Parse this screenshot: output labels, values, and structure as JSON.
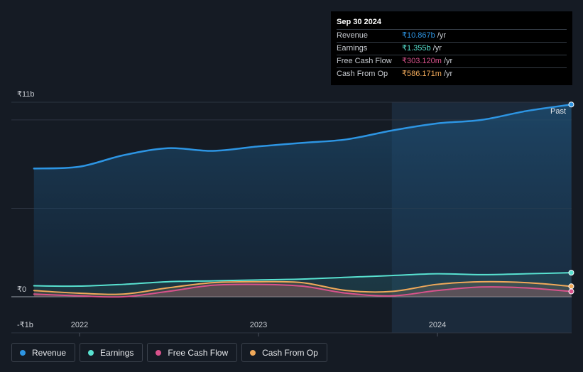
{
  "tooltip": {
    "date": "Sep 30 2024",
    "rows": [
      {
        "label": "Revenue",
        "value": "₹10.867b",
        "unit": "/yr",
        "color": "#2d95e3"
      },
      {
        "label": "Earnings",
        "value": "₹1.355b",
        "unit": "/yr",
        "color": "#58e1d0"
      },
      {
        "label": "Free Cash Flow",
        "value": "₹303.120m",
        "unit": "/yr",
        "color": "#d9528c"
      },
      {
        "label": "Cash From Op",
        "value": "₹586.171m",
        "unit": "/yr",
        "color": "#f0a95a"
      }
    ]
  },
  "past_label": "Past",
  "legend": [
    {
      "label": "Revenue",
      "color": "#2d95e3"
    },
    {
      "label": "Earnings",
      "color": "#58e1d0"
    },
    {
      "label": "Free Cash Flow",
      "color": "#d9528c"
    },
    {
      "label": "Cash From Op",
      "color": "#f0a95a"
    }
  ],
  "chart_data": {
    "type": "line",
    "y_tick_labels": [
      "₹11b",
      "₹0",
      "-₹1b"
    ],
    "x_tick_labels": [
      "2022",
      "2023",
      "2024"
    ],
    "ylim": [
      -1,
      11
    ],
    "unit": "₹b",
    "grid": true,
    "legend_position": "bottom",
    "highlighted_from": "2023-09-30",
    "x": [
      "2021-09-30",
      "2021-12-31",
      "2022-03-31",
      "2022-06-30",
      "2022-09-30",
      "2022-12-31",
      "2023-03-31",
      "2023-06-30",
      "2023-09-30",
      "2023-12-31",
      "2024-03-31",
      "2024-06-30",
      "2024-09-30"
    ],
    "series": [
      {
        "name": "Revenue",
        "color": "#2d95e3",
        "values": [
          7.25,
          7.35,
          8.0,
          8.4,
          8.25,
          8.5,
          8.7,
          8.9,
          9.4,
          9.8,
          10.0,
          10.5,
          10.87
        ]
      },
      {
        "name": "Earnings",
        "color": "#58e1d0",
        "values": [
          0.62,
          0.6,
          0.7,
          0.85,
          0.9,
          0.95,
          1.0,
          1.1,
          1.2,
          1.3,
          1.25,
          1.3,
          1.36
        ]
      },
      {
        "name": "Free Cash Flow",
        "color": "#d9528c",
        "values": [
          0.15,
          0.05,
          0.0,
          0.3,
          0.65,
          0.7,
          0.6,
          0.2,
          0.05,
          0.35,
          0.55,
          0.5,
          0.3
        ]
      },
      {
        "name": "Cash From Op",
        "color": "#f0a95a",
        "values": [
          0.35,
          0.2,
          0.15,
          0.5,
          0.8,
          0.85,
          0.8,
          0.35,
          0.3,
          0.7,
          0.85,
          0.8,
          0.59
        ]
      }
    ]
  }
}
